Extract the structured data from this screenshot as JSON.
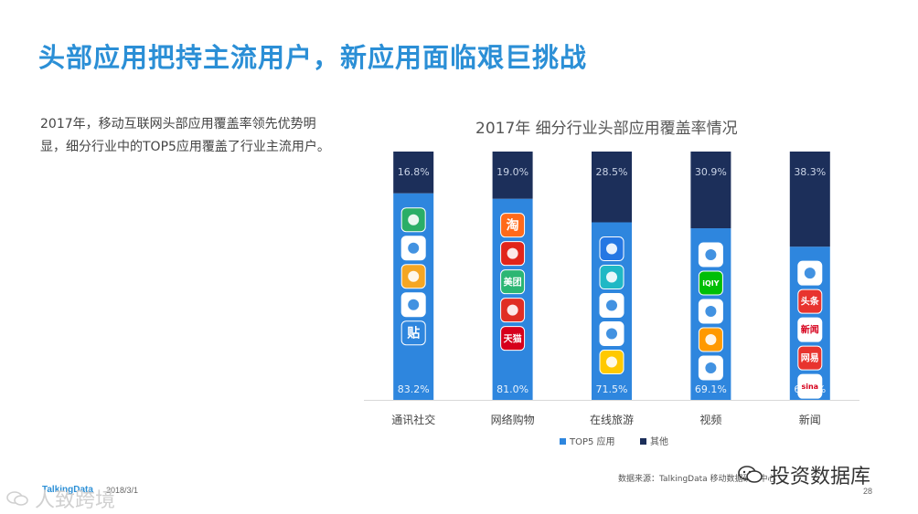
{
  "slide": {
    "title": "头部应用把持主流用户，新应用面临艰巨挑战",
    "summary": "2017年，移动互联网头部应用覆盖率领先优势明显，细分行业中的TOP5应用覆盖了行业主流用户。"
  },
  "chart_data": {
    "type": "bar",
    "stacked": true,
    "title": "2017年 细分行业头部应用覆盖率情况",
    "categories": [
      "通讯社交",
      "网络购物",
      "在线旅游",
      "视频",
      "新闻"
    ],
    "series": [
      {
        "name": "TOP5 应用",
        "values": [
          83.2,
          81.0,
          71.5,
          69.1,
          61.7
        ],
        "color": "#2e86de",
        "labels": [
          "83.2%",
          "81.0%",
          "71.5%",
          "69.1%",
          "61.7%"
        ]
      },
      {
        "name": "其他",
        "values": [
          16.8,
          19.0,
          28.5,
          30.9,
          38.3
        ],
        "color": "#1c2f5a",
        "labels": [
          "16.8%",
          "19.0%",
          "28.5%",
          "30.9%",
          "38.3%"
        ]
      }
    ],
    "ylim": [
      0,
      100
    ],
    "legend": "bottom",
    "grid": false,
    "app_icons": [
      [
        {
          "name": "wechat-icon",
          "color": "#2aae67",
          "text": ""
        },
        {
          "name": "qq-icon",
          "color": "#ffffff",
          "text": ""
        },
        {
          "name": "weibo-icon",
          "color": "#f5a623",
          "text": ""
        },
        {
          "name": "momo-icon",
          "color": "#ffffff",
          "text": ""
        },
        {
          "name": "tieba-icon",
          "color": "#2e86de",
          "text": "贴"
        }
      ],
      [
        {
          "name": "taobao-icon",
          "color": "#ff6a1a",
          "text": "淘"
        },
        {
          "name": "jd-icon",
          "color": "#e1251b",
          "text": ""
        },
        {
          "name": "meituan-icon",
          "color": "#2bb673",
          "text": "美团"
        },
        {
          "name": "pinduoduo-icon",
          "color": "#e02e24",
          "text": ""
        },
        {
          "name": "tmall-icon",
          "color": "#d6001c",
          "text": "天猫"
        }
      ],
      [
        {
          "name": "ctrip-icon",
          "color": "#2577e3",
          "text": ""
        },
        {
          "name": "qunar-icon",
          "color": "#1fb8c5",
          "text": ""
        },
        {
          "name": "railway-icon",
          "color": "#ffffff",
          "text": ""
        },
        {
          "name": "tongcheng-icon",
          "color": "#ffffff",
          "text": ""
        },
        {
          "name": "fliggy-icon",
          "color": "#ffc900",
          "text": ""
        }
      ],
      [
        {
          "name": "tencent-video-icon",
          "color": "#ffffff",
          "text": ""
        },
        {
          "name": "iqiyi-icon",
          "color": "#00be06",
          "text": "iQIY"
        },
        {
          "name": "youku-icon",
          "color": "#ffffff",
          "text": ""
        },
        {
          "name": "kuaishou-icon",
          "color": "#ff9900",
          "text": ""
        },
        {
          "name": "video-player-icon",
          "color": "#ffffff",
          "text": ""
        }
      ],
      [
        {
          "name": "tencent-news-icon",
          "color": "#ffffff",
          "text": ""
        },
        {
          "name": "toutiao-icon",
          "color": "#e8342e",
          "text": "头条"
        },
        {
          "name": "sohu-news-icon",
          "color": "#ffffff",
          "text": "新闻"
        },
        {
          "name": "netease-news-icon",
          "color": "#e8342e",
          "text": "网易"
        },
        {
          "name": "sina-news-icon",
          "color": "#ffffff",
          "text": "sina"
        }
      ]
    ]
  },
  "footer": {
    "logo": "TalkingData",
    "date": "2018/3/1",
    "source": "数据来源：TalkingData 移动数据研究中心",
    "page": "28"
  },
  "watermarks": {
    "right": "投资数据库",
    "left": "人致跨境"
  }
}
